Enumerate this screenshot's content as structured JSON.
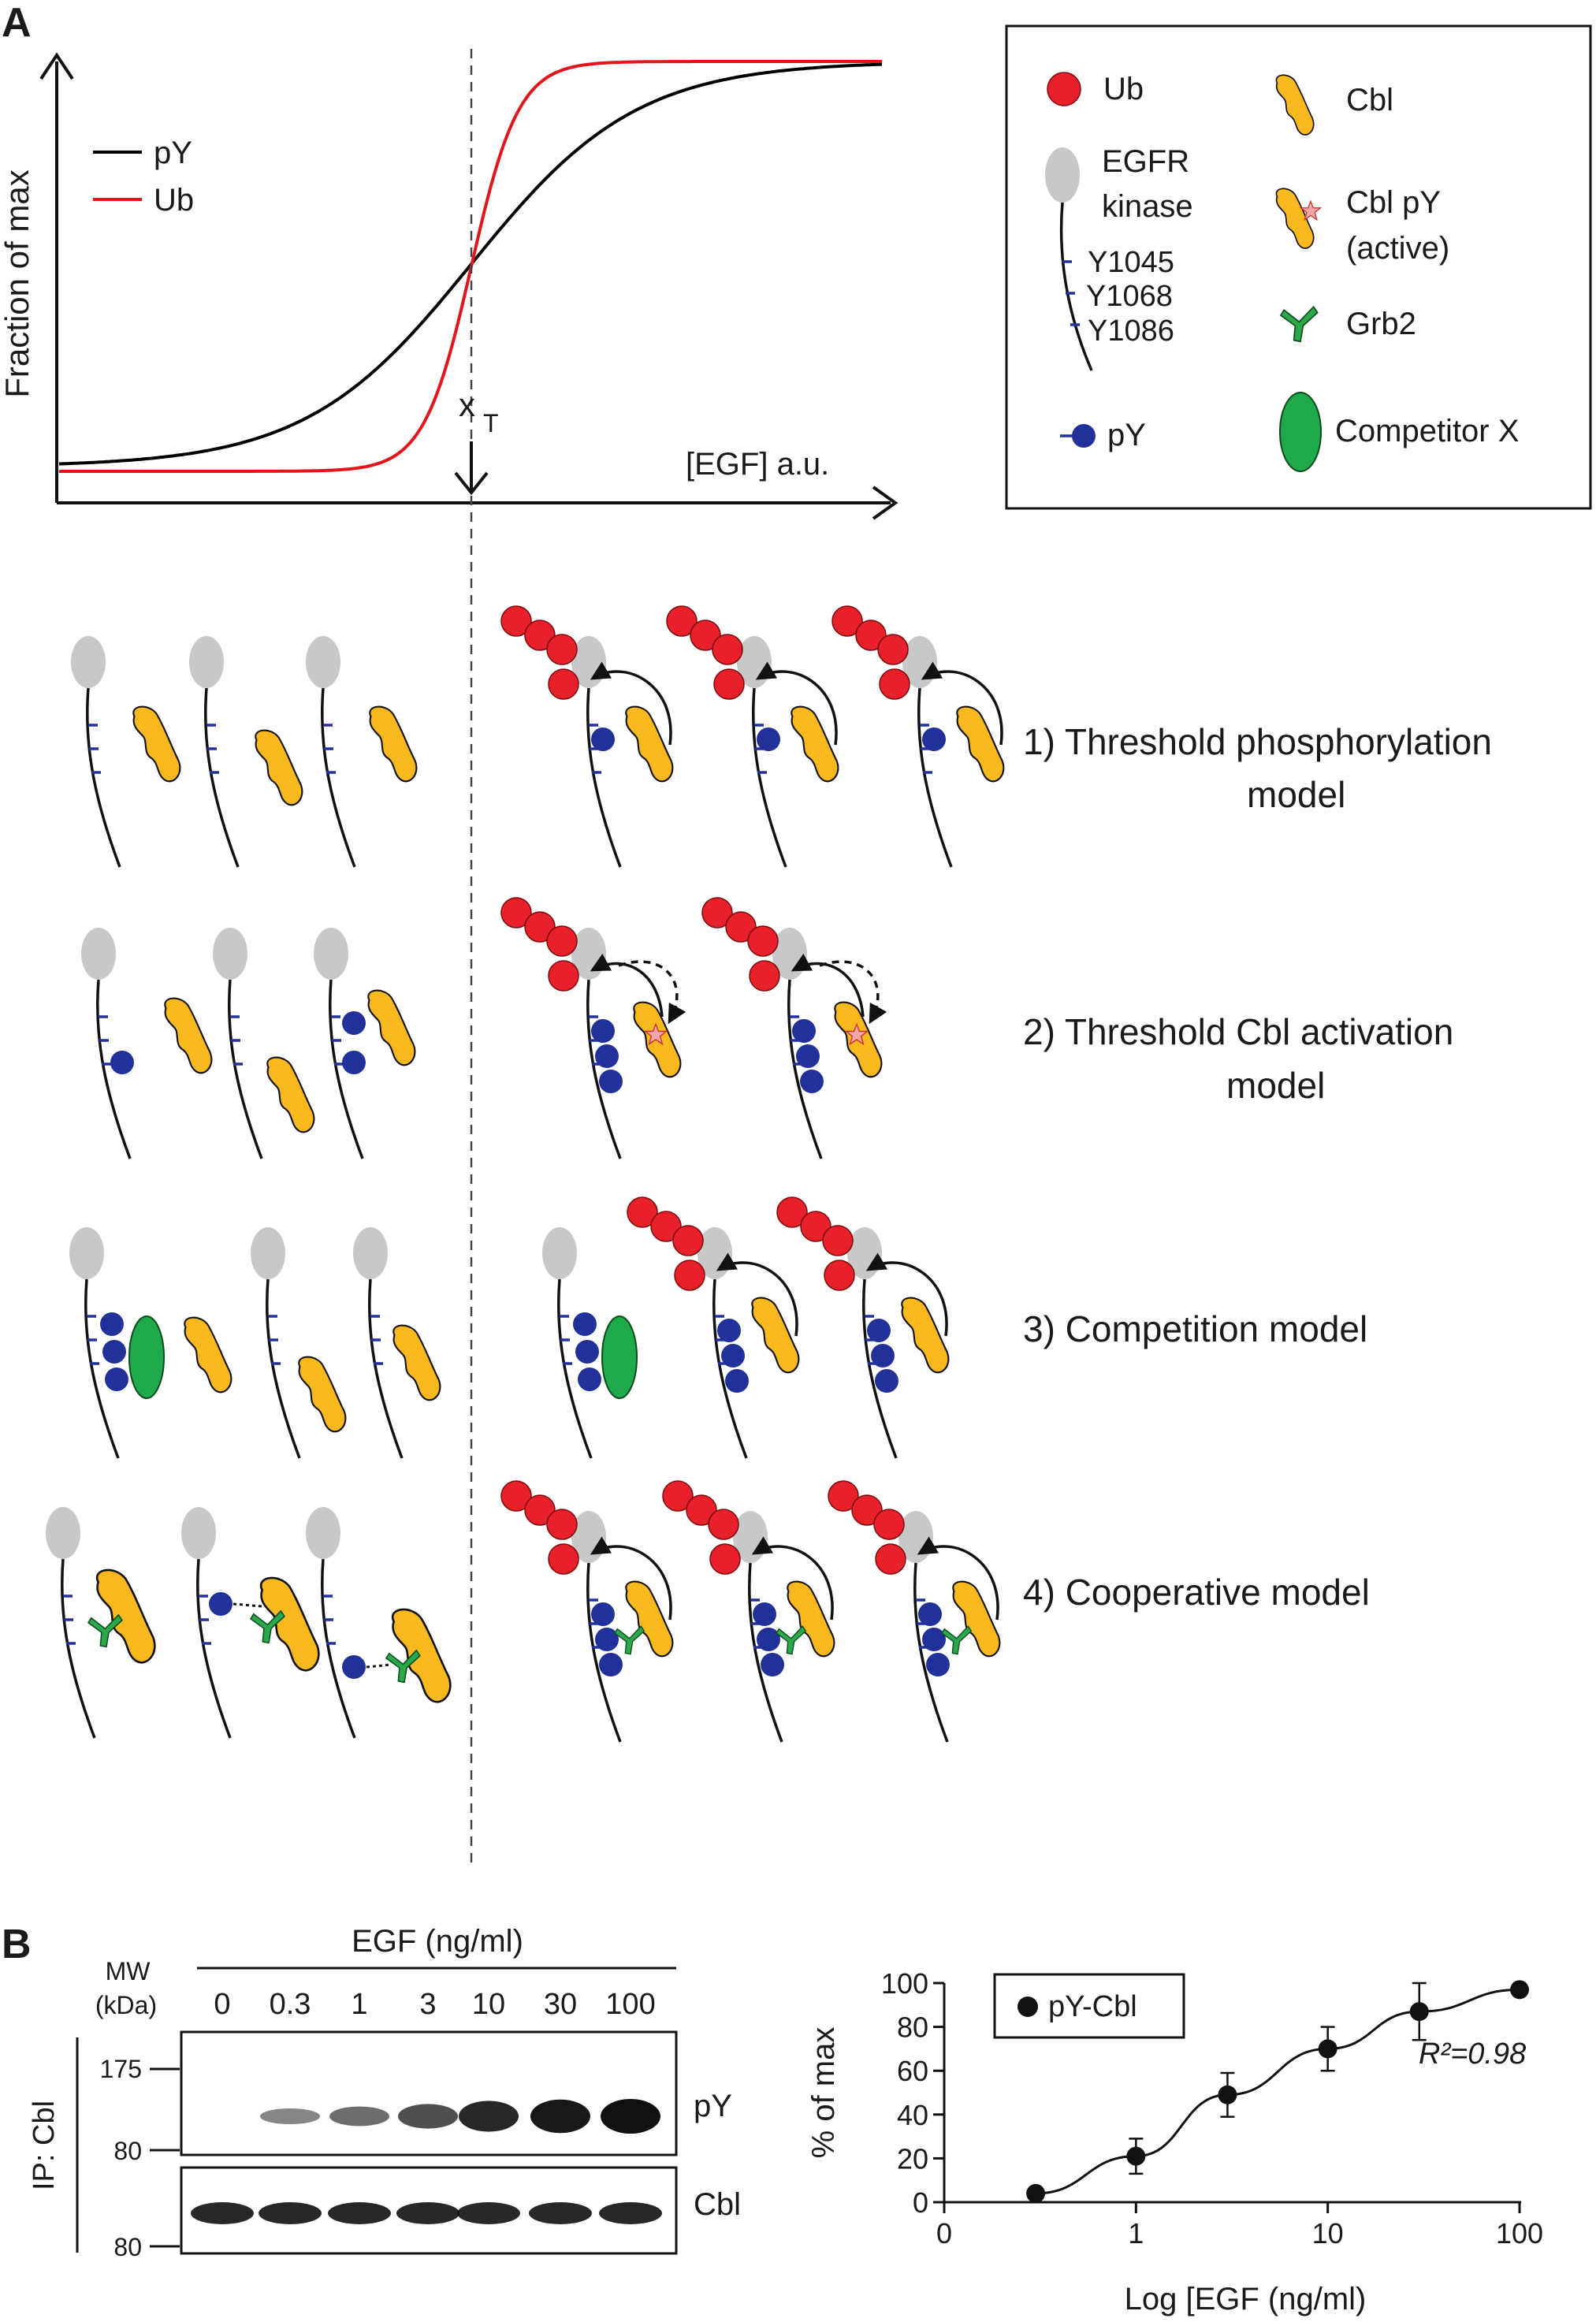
{
  "panel_a": {
    "label": "A",
    "y_axis_label": "Fraction of max",
    "x_axis_label": "[EGF] a.u.",
    "threshold_label": "x",
    "threshold_sub": "T",
    "legend": [
      {
        "name": "pY",
        "color": "#000000"
      },
      {
        "name": "Ub",
        "color": "#e3151c"
      }
    ],
    "key": {
      "ub": "Ub",
      "egfr_line1": "EGFR",
      "egfr_line2": "kinase",
      "sites": [
        "Y1045",
        "Y1068",
        "Y1086"
      ],
      "py": "pY",
      "cbl": "Cbl",
      "cbl_py_line1": "Cbl pY",
      "cbl_py_line2": "(active)",
      "grb2": "Grb2",
      "competitor": "Competitor X"
    },
    "models": [
      {
        "line1": "1) Threshold phosphorylation",
        "line2": "model"
      },
      {
        "line1": "2) Threshold Cbl activation",
        "line2": "model"
      },
      {
        "line1": "3) Competition model",
        "line2": ""
      },
      {
        "line1": "4) Cooperative model",
        "line2": ""
      }
    ],
    "colors": {
      "ub": "#e8202a",
      "receptor": "#c8c8c8",
      "cbl": "#f7b91e",
      "py": "#22319a",
      "grb2": "#2aa84a",
      "competitor": "#1faa4b"
    }
  },
  "panel_b": {
    "label": "B",
    "blot": {
      "treatment_label": "EGF (ng/ml)",
      "mw_label_line1": "MW",
      "mw_label_line2": "(kDa)",
      "lanes": [
        "0",
        "0.3",
        "1",
        "3",
        "10",
        "30",
        "100"
      ],
      "ip_label": "IP: Cbl",
      "top_blot_label": "pY",
      "bottom_blot_label": "Cbl",
      "top_markers": [
        "175",
        "80"
      ],
      "bottom_markers": [
        "80"
      ],
      "py_band_intensity": [
        0,
        0.25,
        0.4,
        0.6,
        0.85,
        0.95,
        1.0
      ]
    },
    "chart_data": {
      "type": "scatter",
      "xlabel": "Log [EGF (ng/ml)",
      "ylabel": "% of max",
      "x_ticks": [
        "0",
        "1",
        "10",
        "100"
      ],
      "y_ticks": [
        "0",
        "20",
        "40",
        "60",
        "80",
        "100"
      ],
      "ylim": [
        0,
        100
      ],
      "x_scale": "log",
      "series": [
        {
          "name": "pY-Cbl",
          "x": [
            0.3,
            1,
            3,
            10,
            30,
            100
          ],
          "y": [
            4,
            21,
            49,
            70,
            87,
            97
          ],
          "error": [
            0,
            8,
            10,
            10,
            13,
            0
          ]
        }
      ],
      "annotation": "R²=0.98",
      "legend": "top-left"
    }
  }
}
